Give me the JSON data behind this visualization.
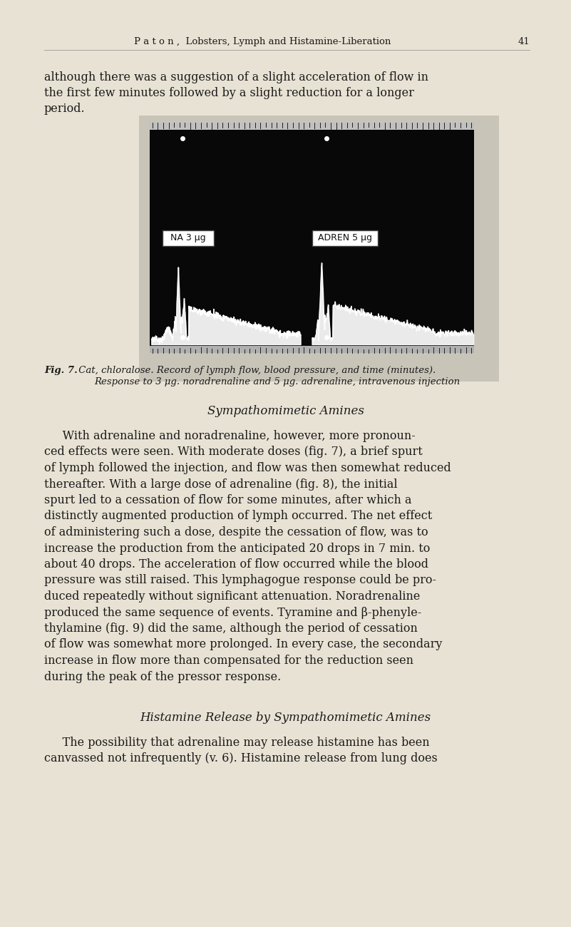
{
  "page_bg": "#e8e2d4",
  "header_text": "P a t o n ,  Lobsters, Lymph and Histamine-Liberation",
  "header_page_num": "41",
  "para1_line1": "although there was a suggestion of a slight acceleration of flow in",
  "para1_line2": "the first few minutes followed by a slight reduction for a longer",
  "para1_line3": "period.",
  "fig_caption_bold": "Fig. 7.",
  "fig_caption_rest": " Cat, chloralose. Record of lymph flow, blood pressure, and time (minutes).",
  "fig_caption_line2": "Response to 3 μg. noradrenaline and 5 μg. adrenaline, intravenous injection",
  "section_heading": "Sympathomimetic Amines",
  "para2_lines": [
    "     With adrenaline and noradrenaline, however, more pronoun-",
    "ced effects were seen. With moderate doses (fig. 7), a brief spurt",
    "of lymph followed the injection, and flow was then somewhat reduced",
    "thereafter. With a large dose of adrenaline (fig. 8), the initial",
    "spurt led to a cessation of flow for some minutes, after which a",
    "distinctly augmented production of lymph occurred. The net effect",
    "of administering such a dose, despite the cessation of flow, was to",
    "increase the production from the anticipated 20 drops in 7 min. to",
    "about 40 drops. The acceleration of flow occurred while the blood",
    "pressure was still raised. This lymphagogue response could be pro-",
    "duced repeatedly without significant attenuation. Noradrenaline",
    "produced the same sequence of events. Tyramine and β-phenyle-",
    "thylamine (fig. 9) did the same, although the period of cessation",
    "of flow was somewhat more prolonged. In every case, the secondary",
    "increase in flow more than compensated for the reduction seen",
    "during the peak of the pressor response."
  ],
  "section_heading2": "Histamine Release by Sympathomimetic Amines",
  "para3_lines": [
    "     The possibility that adrenaline may release histamine has been",
    "canvassed not infrequently (v. 6). Histamine release from lung does"
  ],
  "label1_text": "NA 3 μg",
  "label2_text": "ADREN 5 μg"
}
